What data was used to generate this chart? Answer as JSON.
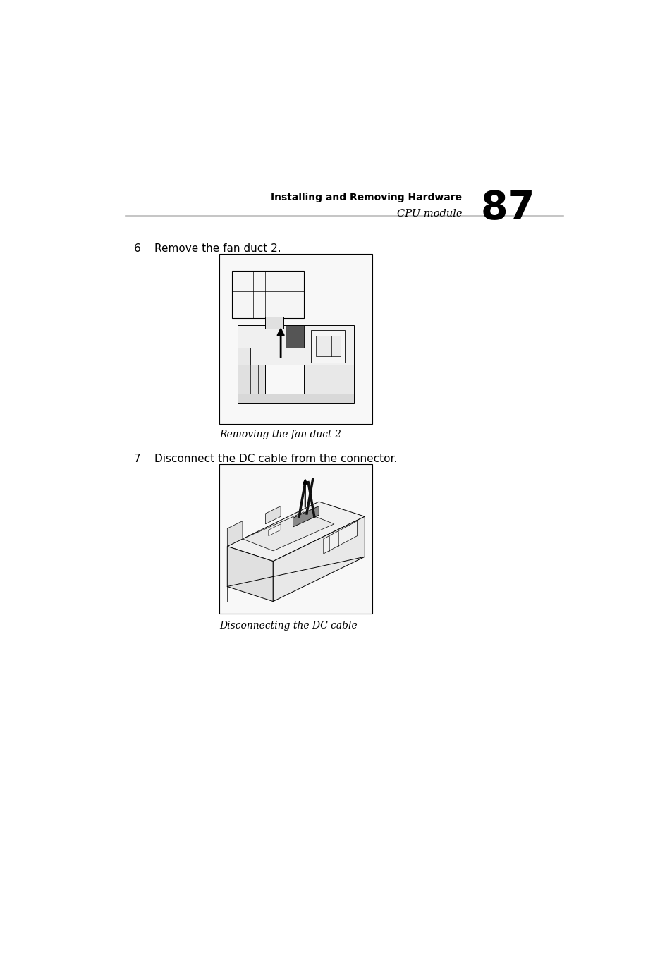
{
  "page_width": 9.54,
  "page_height": 13.51,
  "bg_color": "#ffffff",
  "header_title": "Installing and Removing Hardware",
  "header_subtitle": "CPU module",
  "page_number": "87",
  "text_color": "#000000",
  "header_line_color": "#bbbbbb",
  "step6_number": "6",
  "step6_text": "Remove the fan duct 2.",
  "caption1": "Removing the fan duct 2",
  "step7_number": "7",
  "step7_text": "Disconnect the DC cable from the connector.",
  "caption2": "Disconnecting the DC cable",
  "header_bold_fontsize": 10,
  "header_italic_fontsize": 10.5,
  "page_num_fontsize": 40,
  "step_fontsize": 11,
  "caption_fontsize": 10
}
